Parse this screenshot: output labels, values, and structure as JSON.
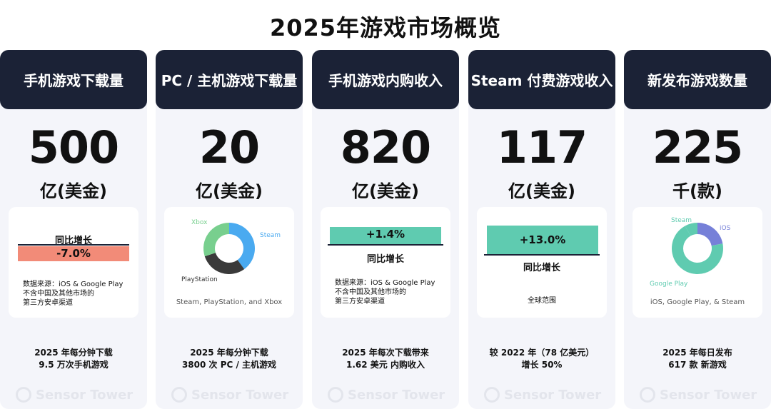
{
  "page_title": "2025年游戏市场概览",
  "brand_watermark": "Sensor Tower",
  "colors": {
    "header_bg": "#1b2236",
    "negative": "#f28b78",
    "positive": "#5fcbb0",
    "donut_blue": "#4aaaf0",
    "donut_green": "#78cf8e",
    "donut_dark": "#3a3a3a",
    "donut_teal": "#5fcbb0",
    "donut_purple": "#7680d8"
  },
  "cards": [
    {
      "header": "手机游戏下载量",
      "value": "500",
      "unit": "亿(美金)",
      "yoy_label": "同比增长",
      "yoy_value": "-7.0%",
      "note_lines": [
        "数据来源：iOS & Google Play",
        "不含中国及其他市场的",
        "第三方安卓渠道"
      ],
      "footer_lines": [
        "2025 年每分钟下载",
        "9.5 万次手机游戏"
      ]
    },
    {
      "header": "PC / 主机游戏下载量",
      "value": "20",
      "unit": "亿(美金)",
      "source_line": "Steam, PlayStation, and Xbox",
      "footer_lines": [
        "2025 年每分钟下载",
        "3800 次 PC / 主机游戏"
      ]
    },
    {
      "header": "手机游戏内购收入",
      "value": "820",
      "unit": "亿(美金)",
      "yoy_label": "同比增长",
      "yoy_value": "+1.4%",
      "note_lines": [
        "数据来源：iOS & Google Play",
        "不含中国及其他市场的",
        "第三方安卓渠道"
      ],
      "footer_lines": [
        "2025 年每次下载带来",
        "1.62 美元 内购收入"
      ]
    },
    {
      "header": "Steam 付费游戏收入",
      "value": "117",
      "unit": "亿(美金)",
      "yoy_label": "同比增长",
      "yoy_value": "+13.0%",
      "note_line": "全球范围",
      "footer_lines": [
        "较 2022 年（78 亿美元）",
        "增长 50%"
      ]
    },
    {
      "header": "新发布游戏数量",
      "value": "225",
      "unit": "千(款)",
      "source_line": "iOS, Google Play, & Steam",
      "footer_lines": [
        "2025 年每日发布",
        "617 款 新游戏"
      ]
    }
  ],
  "chart_data": [
    {
      "type": "bar",
      "title": "同比增长",
      "categories": [
        "手机游戏下载量",
        "手机游戏内购收入",
        "Steam 付费游戏收入"
      ],
      "values": [
        -7.0,
        1.4,
        13.0
      ],
      "unit": "%"
    },
    {
      "type": "pie",
      "donut": true,
      "labels": [
        "Steam",
        "PlayStation",
        "Xbox"
      ],
      "values": [
        40,
        30,
        30
      ]
    },
    {
      "type": "pie",
      "donut": true,
      "labels": [
        "iOS",
        "Google Play",
        "Steam"
      ],
      "values": [
        22,
        70,
        8
      ]
    }
  ]
}
